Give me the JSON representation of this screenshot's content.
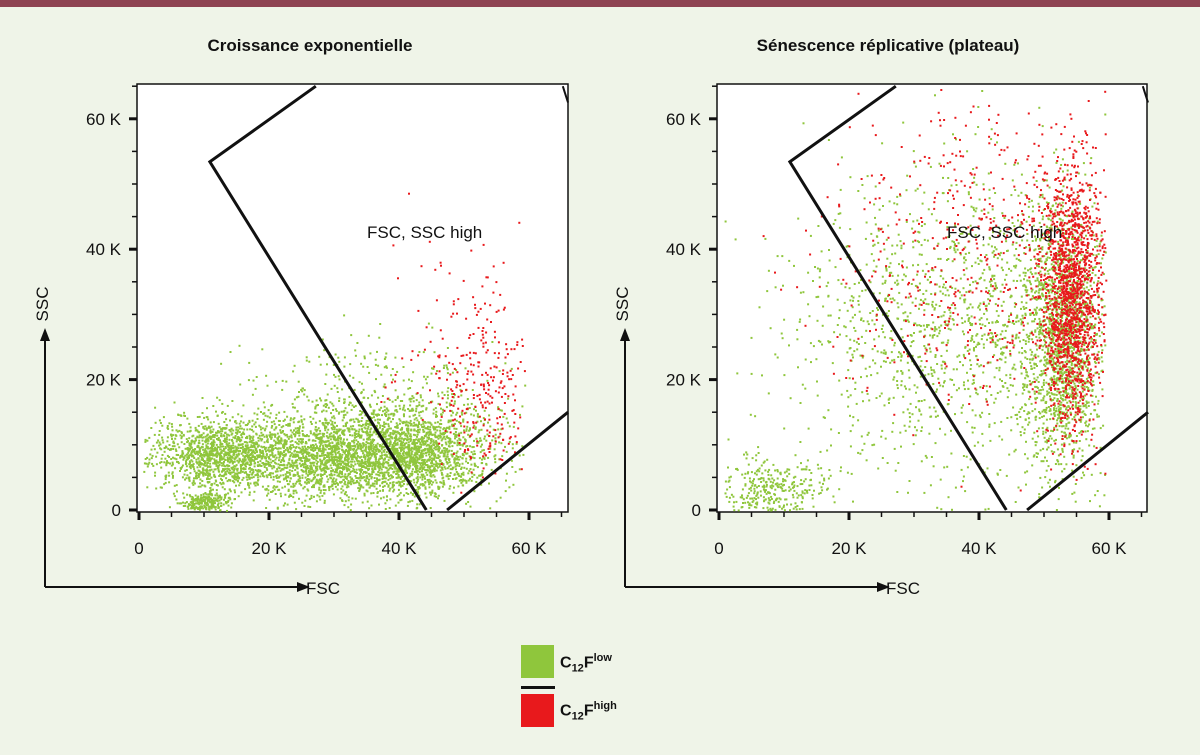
{
  "colors": {
    "background": "#eff4e8",
    "top_bar": "#8e4352",
    "low": "#8fc63c",
    "high": "#e8191c",
    "gate": "#111111"
  },
  "legend": {
    "low": {
      "base": "C",
      "sub": "12",
      "mid": "F",
      "sup": "low"
    },
    "high": {
      "base": "C",
      "sub": "12",
      "mid": "F",
      "sup": "high"
    }
  },
  "chart_data": [
    {
      "type": "scatter",
      "title": "Croissance exponentielle",
      "xlabel": "FSC",
      "ylabel": "SSC",
      "xlim": [
        0,
        66000
      ],
      "ylim": [
        0,
        65000
      ],
      "x_ticks": [
        {
          "v": 0,
          "label": "0"
        },
        {
          "v": 20000,
          "label": "20 K"
        },
        {
          "v": 40000,
          "label": "40 K"
        },
        {
          "v": 60000,
          "label": "60 K"
        }
      ],
      "y_ticks": [
        {
          "v": 0,
          "label": "0"
        },
        {
          "v": 20000,
          "label": "20 K"
        },
        {
          "v": 40000,
          "label": "40 K"
        },
        {
          "v": 60000,
          "label": "60 K"
        }
      ],
      "gate_label": "FSC, SSC high",
      "gate": [
        [
          27200,
          65000
        ],
        [
          10900,
          53400
        ],
        [
          44200,
          0
        ]
      ],
      "gate2": [
        [
          47400,
          0
        ],
        [
          66000,
          15000
        ]
      ],
      "gate3": [
        [
          65200,
          65000
        ],
        [
          66000,
          62500
        ]
      ],
      "series": [
        {
          "name": "C12F low",
          "color": "#8fc63c",
          "clusters": [
            {
              "x": 12000,
              "y": 8500,
              "sx": 5000,
              "sy": 2800,
              "n": 1300
            },
            {
              "x": 28000,
              "y": 8000,
              "sx": 6000,
              "sy": 3200,
              "n": 1500
            },
            {
              "x": 42000,
              "y": 9000,
              "sx": 6000,
              "sy": 3400,
              "n": 1600
            },
            {
              "x": 10000,
              "y": 1200,
              "sx": 1800,
              "sy": 900,
              "n": 250
            },
            {
              "x": 36000,
              "y": 15000,
              "sx": 11000,
              "sy": 5500,
              "n": 500
            }
          ]
        },
        {
          "name": "C12F high",
          "color": "#e8191c",
          "clusters": [
            {
              "x": 53000,
              "y": 17000,
              "sx": 3500,
              "sy": 6000,
              "n": 220
            },
            {
              "x": 49000,
              "y": 28000,
              "sx": 6500,
              "sy": 8000,
              "n": 90
            }
          ]
        }
      ]
    },
    {
      "type": "scatter",
      "title": "Sénescence réplicative (plateau)",
      "xlabel": "FSC",
      "ylabel": "SSC",
      "xlim": [
        0,
        66000
      ],
      "ylim": [
        0,
        65000
      ],
      "x_ticks": [
        {
          "v": 0,
          "label": "0"
        },
        {
          "v": 20000,
          "label": "20 K"
        },
        {
          "v": 40000,
          "label": "40 K"
        },
        {
          "v": 60000,
          "label": "60 K"
        }
      ],
      "y_ticks": [
        {
          "v": 0,
          "label": "0"
        },
        {
          "v": 20000,
          "label": "20 K"
        },
        {
          "v": 40000,
          "label": "40 K"
        },
        {
          "v": 60000,
          "label": "60 K"
        }
      ],
      "gate_label": "FSC, SSC high",
      "gate": [
        [
          27200,
          65000
        ],
        [
          10900,
          53400
        ],
        [
          44200,
          0
        ]
      ],
      "gate2": [
        [
          47400,
          0
        ],
        [
          66000,
          15000
        ]
      ],
      "gate3": [
        [
          65200,
          65000
        ],
        [
          66000,
          62500
        ]
      ],
      "series": [
        {
          "name": "C12F low",
          "color": "#8fc63c",
          "clusters": [
            {
              "x": 8000,
              "y": 3000,
              "sx": 4500,
              "sy": 2500,
              "n": 350
            },
            {
              "x": 38000,
              "y": 28000,
              "sx": 13000,
              "sy": 12000,
              "n": 1500
            },
            {
              "x": 52500,
              "y": 26000,
              "sx": 3000,
              "sy": 10000,
              "n": 1500
            }
          ]
        },
        {
          "name": "C12F high",
          "color": "#e8191c",
          "clusters": [
            {
              "x": 54000,
              "y": 33000,
              "sx": 2300,
              "sy": 9500,
              "n": 1500
            },
            {
              "x": 42000,
              "y": 40000,
              "sx": 12000,
              "sy": 12000,
              "n": 600
            }
          ]
        }
      ]
    }
  ]
}
